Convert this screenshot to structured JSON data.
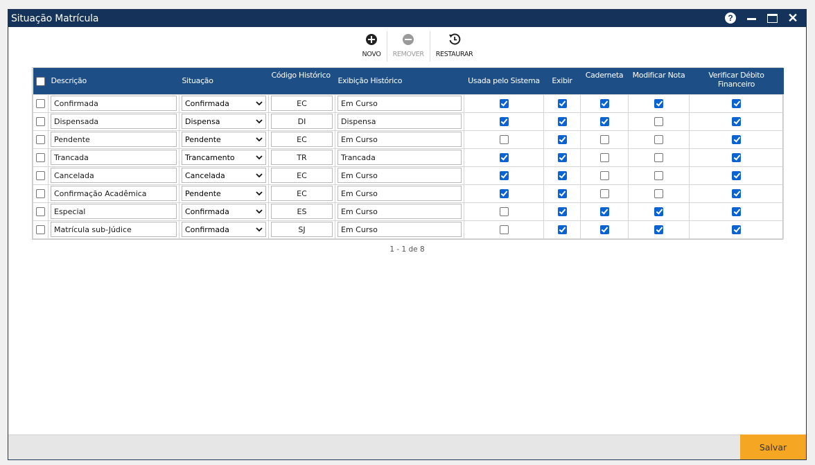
{
  "window": {
    "title": "Situação Matrícula"
  },
  "toolbar": {
    "novo_label": "NOVO",
    "remover_label": "REMOVER",
    "restaurar_label": "RESTAURAR"
  },
  "grid": {
    "columns": {
      "descricao": "Descrição",
      "situacao": "Situação",
      "codigo": "Código Histórico",
      "exibicao": "Exibição Histórico",
      "usada": "Usada pelo Sistema",
      "exibir": "Exibir",
      "caderneta": "Caderneta",
      "modificar": "Modificar Nota",
      "verificar": "Verificar Débito Financeiro"
    },
    "rows": [
      {
        "descricao": "Confirmada",
        "situacao": "Confirmada",
        "codigo": "EC",
        "exibicao": "Em Curso",
        "usada": true,
        "exibir": true,
        "caderneta": true,
        "modificar": true,
        "verificar": true
      },
      {
        "descricao": "Dispensada",
        "situacao": "Dispensa",
        "codigo": "DI",
        "exibicao": "Dispensa",
        "usada": true,
        "exibir": true,
        "caderneta": true,
        "modificar": false,
        "verificar": true
      },
      {
        "descricao": "Pendente",
        "situacao": "Pendente",
        "codigo": "EC",
        "exibicao": "Em Curso",
        "usada": false,
        "exibir": true,
        "caderneta": false,
        "modificar": false,
        "verificar": true
      },
      {
        "descricao": "Trancada",
        "situacao": "Trancamento",
        "codigo": "TR",
        "exibicao": "Trancada",
        "usada": true,
        "exibir": true,
        "caderneta": false,
        "modificar": false,
        "verificar": true
      },
      {
        "descricao": "Cancelada",
        "situacao": "Cancelada",
        "codigo": "EC",
        "exibicao": "Em Curso",
        "usada": true,
        "exibir": true,
        "caderneta": false,
        "modificar": false,
        "verificar": true
      },
      {
        "descricao": "Confirmação Acadêmica",
        "situacao": "Pendente",
        "codigo": "EC",
        "exibicao": "Em Curso",
        "usada": true,
        "exibir": true,
        "caderneta": false,
        "modificar": false,
        "verificar": true
      },
      {
        "descricao": "Especial",
        "situacao": "Confirmada",
        "codigo": "ES",
        "exibicao": "Em Curso",
        "usada": false,
        "exibir": true,
        "caderneta": true,
        "modificar": true,
        "verificar": true
      },
      {
        "descricao": "Matrícula sub-Júdice",
        "situacao": "Confirmada",
        "codigo": "SJ",
        "exibicao": "Em Curso",
        "usada": false,
        "exibir": true,
        "caderneta": true,
        "modificar": true,
        "verificar": true
      }
    ]
  },
  "pager": {
    "text": "1 - 1 de 8"
  },
  "footer": {
    "save_label": "Salvar"
  },
  "colors": {
    "titlebar": "#14325a",
    "header": "#1e4e86",
    "checkbox": "#0b63d1",
    "save": "#f5a623"
  }
}
